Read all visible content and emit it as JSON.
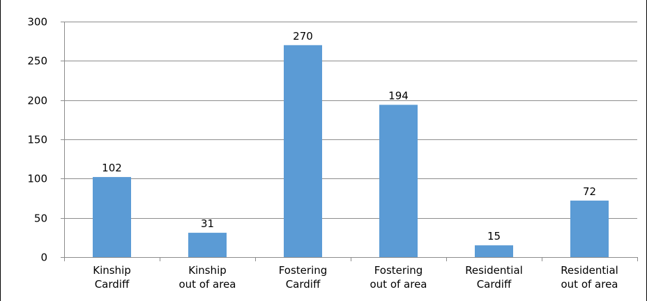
{
  "chart_data": {
    "type": "bar",
    "title": "",
    "xlabel": "",
    "ylabel": "",
    "categories": [
      [
        "Kinship",
        "Cardiff"
      ],
      [
        "Kinship",
        "out of area"
      ],
      [
        "Fostering",
        "Cardiff"
      ],
      [
        "Fostering",
        "out of area"
      ],
      [
        "Residential",
        "Cardiff"
      ],
      [
        "Residential",
        "out of area"
      ]
    ],
    "values": [
      102,
      31,
      270,
      194,
      15,
      72
    ],
    "ylim": [
      0,
      300
    ],
    "yticks": [
      0,
      50,
      100,
      150,
      200,
      250,
      300
    ],
    "grid": true,
    "legend": "none",
    "bar_color": "#5b9bd5",
    "grid_color": "#8c8c8c",
    "axis_color": "#8c8c8c"
  }
}
